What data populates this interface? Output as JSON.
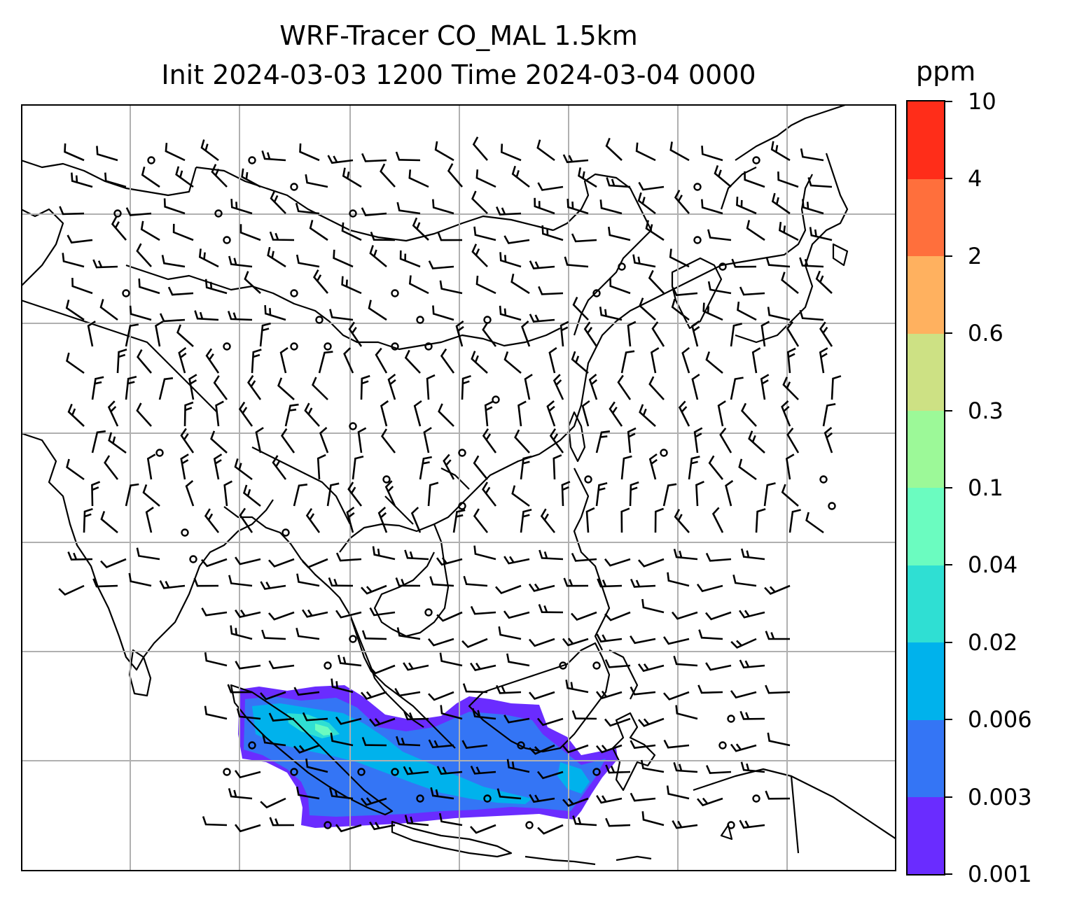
{
  "figure": {
    "title_line1": "WRF-Tracer CO_MAL 1.5km",
    "title_line2": "Init 2024-03-03 1200 Time 2024-03-04 0000",
    "colorbar_unit": "ppm",
    "colorbar_levels": [
      "0.001",
      "0.003",
      "0.006",
      "0.02",
      "0.04",
      "0.1",
      "0.3",
      "0.6",
      "2",
      "4",
      "10"
    ],
    "colorbar_colors": [
      "#6a2cff",
      "#3475f5",
      "#00b2ec",
      "#2fdfd3",
      "#6bfcc0",
      "#9cf998",
      "#cde184",
      "#ffb15f",
      "#ff6f3c",
      "#ff2d19"
    ],
    "map_layers": {
      "coastlines": "black",
      "gridlines": "grey",
      "wind_barbs": "black",
      "tracer_field": "CO_MAL concentration shaded"
    }
  }
}
